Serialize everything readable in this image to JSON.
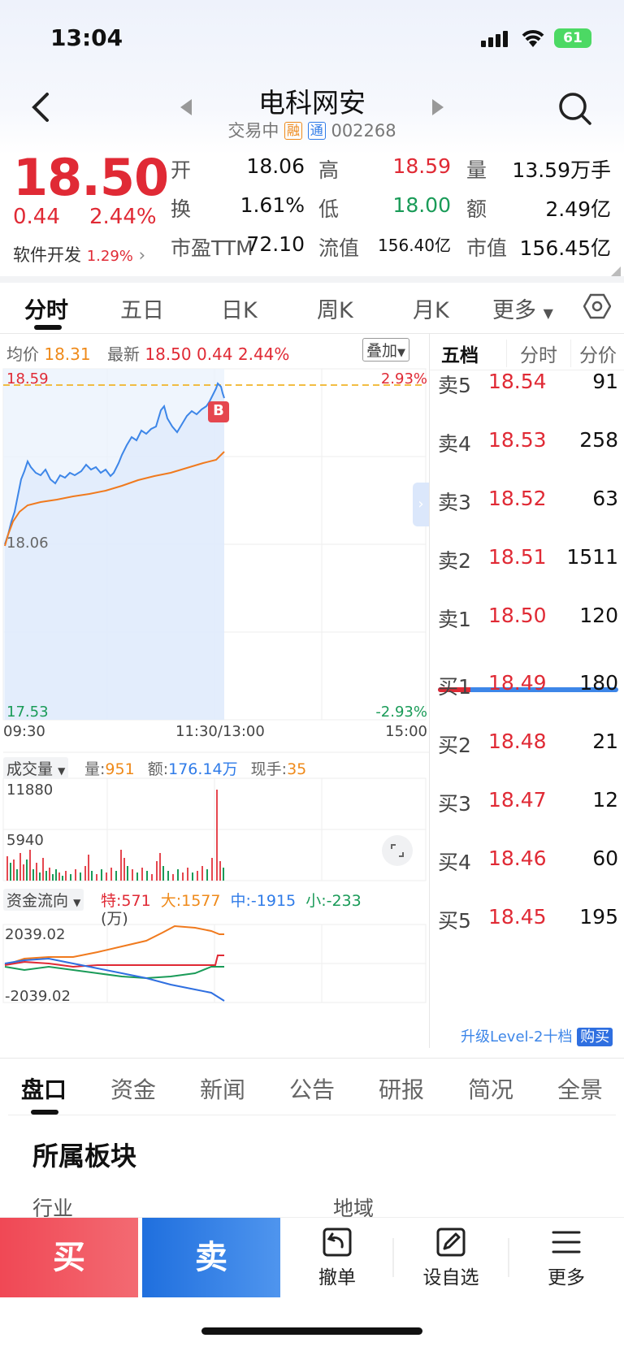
{
  "status_bar": {
    "time": "13:04",
    "battery": "61"
  },
  "header": {
    "name": "电科网安",
    "status": "交易中",
    "tag_rong": "融",
    "tag_tong": "通",
    "code": "002268"
  },
  "quote": {
    "price": "18.50",
    "change": "0.44",
    "change_pct": "2.44%",
    "sector_label": "软件开发",
    "sector_pct": "1.29%",
    "rows": [
      [
        {
          "label": "开",
          "value": "18.06",
          "color": "#111111"
        },
        {
          "label": "高",
          "value": "18.59",
          "color": "#e02a35"
        },
        {
          "label": "量",
          "value": "13.59万手",
          "color": "#111111"
        }
      ],
      [
        {
          "label": "换",
          "value": "1.61%",
          "color": "#111111"
        },
        {
          "label": "低",
          "value": "18.00",
          "color": "#1a9b58"
        },
        {
          "label": "额",
          "value": "2.49亿",
          "color": "#111111"
        }
      ],
      [
        {
          "label": "市盈TTM",
          "value": "72.10",
          "color": "#111111"
        },
        {
          "label": "流值",
          "value": "156.40亿",
          "color": "#111111"
        },
        {
          "label": "市值",
          "value": "156.45亿",
          "color": "#111111"
        }
      ]
    ]
  },
  "chart_tabs": [
    "分时",
    "五日",
    "日K",
    "周K",
    "月K",
    "更多"
  ],
  "intraday": {
    "avg_label": "均价",
    "avg_value": "18.31",
    "latest_label": "最新",
    "latest_value": "18.50",
    "latest_change": "0.44",
    "latest_pct": "2.44%",
    "overlay_label": "叠加",
    "y_top": "18.59",
    "y_mid": "18.06",
    "y_bottom": "17.53",
    "pct_top": "2.93%",
    "pct_bottom": "-2.93%",
    "t_start": "09:30",
    "t_mid": "11:30/13:00",
    "t_end": "15:00",
    "marker": "B"
  },
  "volume": {
    "selector": "成交量",
    "vol_label": "量:",
    "vol_value": "951",
    "amt_label": "额:",
    "amt_value": "176.14万",
    "hand_label": "现手:",
    "hand_value": "35",
    "y_top": "11880",
    "y_mid": "5940"
  },
  "fund_flow": {
    "selector": "资金流向",
    "te": "特:571",
    "da": "大:1577",
    "zhong": "中:-1915",
    "xiao": "小:-233",
    "unit": "(万)",
    "y_top": "2039.02",
    "y_bottom": "-2039.02"
  },
  "orderbook": {
    "tabs": [
      "五档",
      "分时",
      "分价"
    ],
    "asks": [
      {
        "label": "卖5",
        "price": "18.54",
        "vol": "91"
      },
      {
        "label": "卖4",
        "price": "18.53",
        "vol": "258"
      },
      {
        "label": "卖3",
        "price": "18.52",
        "vol": "63"
      },
      {
        "label": "卖2",
        "price": "18.51",
        "vol": "1511"
      },
      {
        "label": "卖1",
        "price": "18.50",
        "vol": "120"
      }
    ],
    "bids": [
      {
        "label": "买1",
        "price": "18.49",
        "vol": "180"
      },
      {
        "label": "买2",
        "price": "18.48",
        "vol": "21"
      },
      {
        "label": "买3",
        "price": "18.47",
        "vol": "12"
      },
      {
        "label": "买4",
        "price": "18.46",
        "vol": "60"
      },
      {
        "label": "买5",
        "price": "18.45",
        "vol": "195"
      }
    ],
    "level2_text": "升级Level-2十档",
    "buy_badge": "购买"
  },
  "bottom_tabs": [
    "盘口",
    "资金",
    "新闻",
    "公告",
    "研报",
    "简况",
    "全景"
  ],
  "section": {
    "title": "所属板块",
    "industry_label": "行业",
    "region_label": "地域"
  },
  "actions": {
    "buy": "买",
    "sell": "卖",
    "cancel": "撤单",
    "watchlist": "设自选",
    "more": "更多"
  }
}
